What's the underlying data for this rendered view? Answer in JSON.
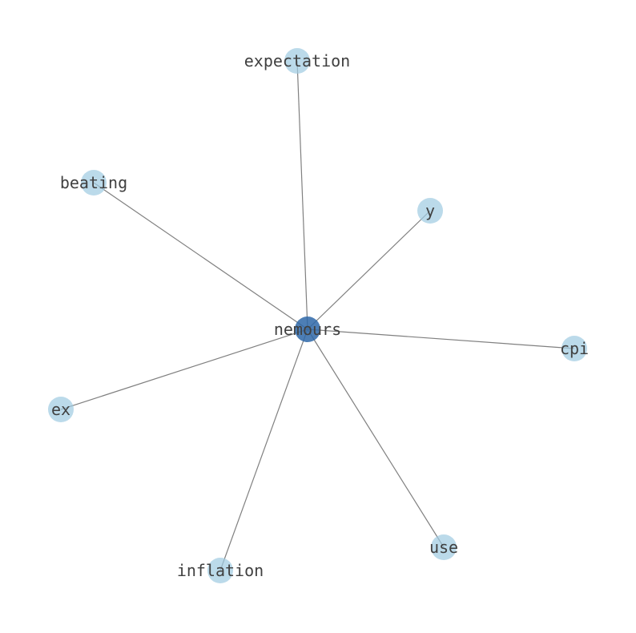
{
  "graph": {
    "center": {
      "id": "nemours",
      "label": "nemours",
      "color": "#2e67a8"
    },
    "leaf_color": "#9ecae1",
    "edge_color": "#808080",
    "nodes": [
      {
        "id": "expectation",
        "label": "expectation"
      },
      {
        "id": "beating",
        "label": "beating"
      },
      {
        "id": "y",
        "label": "y"
      },
      {
        "id": "cpi",
        "label": "cpi"
      },
      {
        "id": "ex",
        "label": "ex"
      },
      {
        "id": "inflation",
        "label": "inflation"
      },
      {
        "id": "use",
        "label": "use"
      }
    ],
    "edges": [
      [
        "nemours",
        "expectation"
      ],
      [
        "nemours",
        "beating"
      ],
      [
        "nemours",
        "y"
      ],
      [
        "nemours",
        "cpi"
      ],
      [
        "nemours",
        "ex"
      ],
      [
        "nemours",
        "inflation"
      ],
      [
        "nemours",
        "use"
      ]
    ]
  }
}
